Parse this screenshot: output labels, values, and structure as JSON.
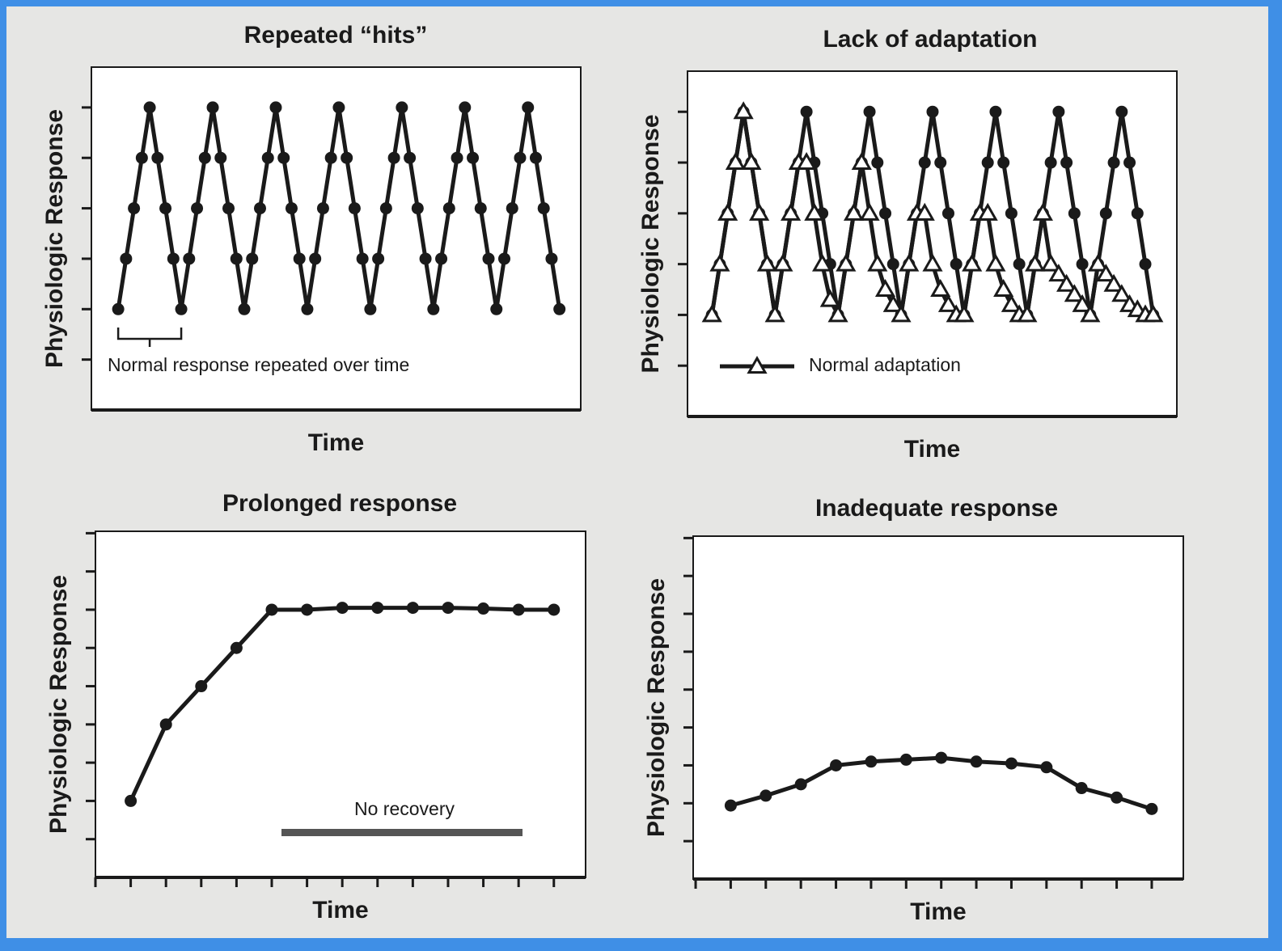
{
  "chart_data": [
    {
      "type": "line",
      "title": "Repeated “hits”",
      "xlabel": "Time",
      "ylabel": "Physiologic Response",
      "annotation": "Normal response repeated over time",
      "x": [
        0,
        1,
        2,
        3,
        4,
        5,
        6,
        7,
        8,
        9,
        10,
        11,
        12,
        13,
        14,
        15,
        16,
        17,
        18,
        19,
        20,
        21,
        22,
        23,
        24,
        25,
        26,
        27,
        28,
        29,
        30,
        31,
        32,
        33,
        34,
        35,
        36,
        37,
        38,
        39,
        40,
        41,
        42,
        43,
        44,
        45,
        46,
        47,
        48,
        49,
        50,
        51,
        52,
        53,
        54,
        55,
        56
      ],
      "xlim": [
        -3.4,
        58.7
      ],
      "ylim": [
        0,
        6.8
      ],
      "yticks": [
        1,
        2,
        3,
        4,
        5,
        6
      ],
      "series": [
        {
          "color": "#1a1a1a",
          "marker": "circle",
          "values": [
            2,
            3,
            4,
            5,
            6,
            5,
            4,
            3,
            2,
            3,
            4,
            5,
            6,
            5,
            4,
            3,
            2,
            3,
            4,
            5,
            6,
            5,
            4,
            3,
            2,
            3,
            4,
            5,
            6,
            5,
            4,
            3,
            2,
            3,
            4,
            5,
            6,
            5,
            4,
            3,
            2,
            3,
            4,
            5,
            6,
            5,
            4,
            3,
            2,
            3,
            4,
            5,
            6,
            5,
            4,
            3,
            2
          ]
        }
      ]
    },
    {
      "type": "line",
      "title": "Lack of adaptation",
      "xlabel": "Time",
      "ylabel": "Physiologic Response",
      "x": [
        0,
        1,
        2,
        3,
        4,
        5,
        6,
        7,
        8,
        9,
        10,
        11,
        12,
        13,
        14,
        15,
        16,
        17,
        18,
        19,
        20,
        21,
        22,
        23,
        24,
        25,
        26,
        27,
        28,
        29,
        30,
        31,
        32,
        33,
        34,
        35,
        36,
        37,
        38,
        39,
        40,
        41,
        42,
        43,
        44,
        45,
        46,
        47,
        48,
        49,
        50,
        51,
        52,
        53,
        54,
        55,
        56
      ],
      "xlim": [
        -3.1,
        59
      ],
      "ylim": [
        0,
        6.8
      ],
      "yticks": [
        1,
        2,
        3,
        4,
        5,
        6
      ],
      "series": [
        {
          "color": "#1a1a1a",
          "marker": "circle",
          "values": [
            2,
            3,
            4,
            5,
            6,
            5,
            4,
            3,
            2,
            3,
            4,
            5,
            6,
            5,
            4,
            3,
            2,
            3,
            4,
            5,
            6,
            5,
            4,
            3,
            2,
            3,
            4,
            5,
            6,
            5,
            4,
            3,
            2,
            3,
            4,
            5,
            6,
            5,
            4,
            3,
            2,
            3,
            4,
            5,
            6,
            5,
            4,
            3,
            2,
            3,
            4,
            5,
            6,
            5,
            4,
            3,
            2
          ]
        },
        {
          "name": "Normal adaptation",
          "color": "#1a1a1a",
          "marker": "triangle",
          "values": [
            2,
            3,
            4,
            5,
            6,
            5,
            4,
            3,
            2,
            3,
            4,
            5,
            5,
            4,
            3,
            2.3,
            2,
            3,
            4,
            5,
            4,
            3,
            2.5,
            2.2,
            2,
            3,
            4,
            4,
            3,
            2.5,
            2.2,
            2,
            2,
            3,
            4,
            4,
            3,
            2.5,
            2.2,
            2,
            2,
            3,
            4,
            3,
            2.8,
            2.6,
            2.4,
            2.2,
            2,
            3,
            2.8,
            2.6,
            2.4,
            2.2,
            2.1,
            2,
            2
          ]
        }
      ]
    },
    {
      "type": "line",
      "title": "Prolonged response",
      "xlabel": "Time",
      "ylabel": "Physiologic Response",
      "annotation": "No recovery",
      "x": [
        1,
        2,
        3,
        4,
        5,
        6,
        7,
        8,
        9,
        10,
        11,
        12,
        13
      ],
      "xlim": [
        0,
        13.9
      ],
      "xticks": [
        0,
        1,
        2,
        3,
        4,
        5,
        6,
        7,
        8,
        9,
        10,
        11,
        12,
        13
      ],
      "ylim": [
        0,
        9.05
      ],
      "yticks": [
        1,
        2,
        3,
        4,
        5,
        6,
        7,
        8,
        9
      ],
      "series": [
        {
          "color": "#1a1a1a",
          "marker": "circle",
          "values": [
            2,
            4,
            5,
            6,
            7,
            7,
            7.05,
            7.05,
            7.05,
            7.05,
            7.03,
            7,
            7
          ]
        }
      ]
    },
    {
      "type": "line",
      "title": "Inadequate response",
      "xlabel": "Time",
      "ylabel": "Physiologic Response",
      "x": [
        1,
        2,
        3,
        4,
        5,
        6,
        7,
        8,
        9,
        10,
        11,
        12,
        13
      ],
      "xlim": [
        -0.07,
        13.9
      ],
      "xticks": [
        0,
        1,
        2,
        3,
        4,
        5,
        6,
        7,
        8,
        9,
        10,
        11,
        12,
        13
      ],
      "ylim": [
        0,
        9.05
      ],
      "yticks": [
        1,
        2,
        3,
        4,
        5,
        6,
        7,
        8,
        9
      ],
      "series": [
        {
          "color": "#1a1a1a",
          "marker": "circle",
          "values": [
            1.94,
            2.2,
            2.5,
            3,
            3.1,
            3.15,
            3.2,
            3.1,
            3.05,
            2.95,
            2.4,
            2.15,
            1.85
          ]
        }
      ]
    }
  ]
}
